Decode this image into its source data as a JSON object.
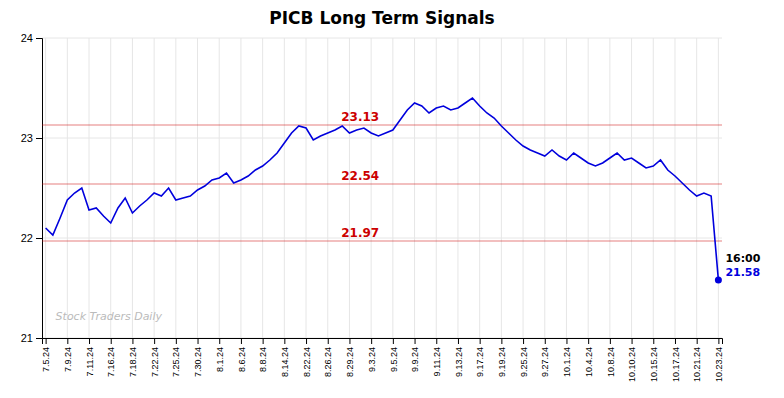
{
  "chart_data": {
    "type": "line",
    "title": "PICB Long Term Signals",
    "categories": [
      "7.5.24",
      null,
      null,
      "7.9.24",
      null,
      null,
      "7.11.24",
      null,
      null,
      "7.16.24",
      null,
      null,
      "7.18.24",
      null,
      null,
      "7.22.24",
      null,
      null,
      "7.25.24",
      null,
      null,
      "7.30.24",
      null,
      null,
      "8.1.24",
      null,
      null,
      "8.6.24",
      null,
      null,
      "8.8.24",
      null,
      null,
      "8.14.24",
      null,
      null,
      "8.22.24",
      null,
      null,
      "8.26.24",
      null,
      null,
      "8.29.24",
      null,
      null,
      "9.3.24",
      null,
      null,
      "9.5.24",
      null,
      null,
      "9.9.24",
      null,
      null,
      "9.11.24",
      null,
      null,
      "9.13.24",
      null,
      null,
      "9.17.24",
      null,
      null,
      "9.19.24",
      null,
      null,
      "9.25.24",
      null,
      null,
      "9.27.24",
      null,
      null,
      "10.1.24",
      null,
      null,
      "10.4.24",
      null,
      null,
      "10.8.24",
      null,
      null,
      "10.10.24",
      null,
      null,
      "10.15.24",
      null,
      null,
      "10.17.24",
      null,
      null,
      "10.21.24",
      null,
      null,
      "10.23.24"
    ],
    "values": [
      22.1,
      22.03,
      22.2,
      22.38,
      22.45,
      22.5,
      22.28,
      22.3,
      22.22,
      22.15,
      22.3,
      22.4,
      22.25,
      22.32,
      22.38,
      22.45,
      22.42,
      22.5,
      22.38,
      22.4,
      22.42,
      22.48,
      22.52,
      22.58,
      22.6,
      22.65,
      22.55,
      22.58,
      22.62,
      22.68,
      22.72,
      22.78,
      22.85,
      22.95,
      23.05,
      23.12,
      23.1,
      22.98,
      23.02,
      23.05,
      23.08,
      23.12,
      23.05,
      23.08,
      23.1,
      23.05,
      23.02,
      23.05,
      23.08,
      23.18,
      23.28,
      23.35,
      23.32,
      23.25,
      23.3,
      23.32,
      23.28,
      23.3,
      23.35,
      23.4,
      23.32,
      23.25,
      23.2,
      23.12,
      23.05,
      22.98,
      22.92,
      22.88,
      22.85,
      22.82,
      22.88,
      22.82,
      22.78,
      22.85,
      22.8,
      22.75,
      22.72,
      22.75,
      22.8,
      22.85,
      22.78,
      22.8,
      22.75,
      22.7,
      22.72,
      22.78,
      22.68,
      22.62,
      22.55,
      22.48,
      22.42,
      22.45,
      22.42,
      21.58
    ],
    "color": "#0000dd",
    "ylim": [
      21,
      24
    ],
    "yticks": [
      21,
      22,
      23,
      24
    ],
    "grid": true,
    "reference_lines": [
      {
        "value": 23.13,
        "label": "23.13",
        "color": "#cc0000"
      },
      {
        "value": 22.54,
        "label": "22.54",
        "color": "#cc0000"
      },
      {
        "value": 21.97,
        "label": "21.97",
        "color": "#cc0000"
      }
    ],
    "annotations": [
      {
        "text": "16:00",
        "color": "#000000"
      },
      {
        "text": "21.58",
        "color": "#0000dd"
      }
    ],
    "watermark": "Stock Traders Daily"
  }
}
